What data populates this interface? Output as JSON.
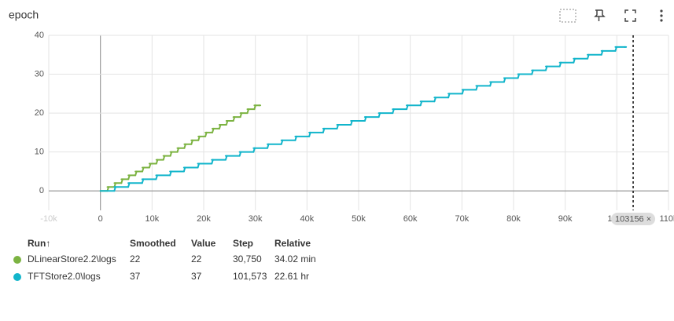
{
  "chart_data": {
    "type": "line",
    "step": true,
    "title": "epoch",
    "xlim": [
      -10000,
      110000
    ],
    "ylim": [
      -5,
      40
    ],
    "xticks": [
      {
        "value": -10000,
        "label": "-10k"
      },
      0,
      {
        "value": 10000,
        "label": "10k"
      },
      {
        "value": 20000,
        "label": "20k"
      },
      {
        "value": 30000,
        "label": "30k"
      },
      {
        "value": 40000,
        "label": "40k"
      },
      {
        "value": 50000,
        "label": "50k"
      },
      {
        "value": 60000,
        "label": "60k"
      },
      {
        "value": 70000,
        "label": "70k"
      },
      {
        "value": 80000,
        "label": "80k"
      },
      {
        "value": 90000,
        "label": "90k"
      },
      {
        "value": 100000,
        "label": "100k"
      },
      {
        "value": 110000,
        "label": "110k"
      }
    ],
    "yticks": [
      0,
      10,
      20,
      30,
      40
    ],
    "grid": true,
    "cursor": {
      "value": 103156,
      "close": "×"
    },
    "series": [
      {
        "name": "DLinearStore2.2\\logs",
        "color": "#7cb342",
        "x": [
          0,
          1355,
          2710,
          4065,
          5420,
          6775,
          8130,
          9485,
          10840,
          12195,
          13550,
          14905,
          16260,
          17615,
          18970,
          20325,
          21680,
          23035,
          24390,
          25745,
          27100,
          28455,
          29810,
          30750
        ],
        "values": [
          0,
          1,
          2,
          3,
          4,
          5,
          6,
          7,
          8,
          9,
          10,
          11,
          12,
          13,
          14,
          15,
          16,
          17,
          18,
          19,
          20,
          21,
          22,
          22
        ]
      },
      {
        "name": "TFTStore2.0\\logs",
        "color": "#12b5cb",
        "x": [
          0,
          2695,
          5390,
          8085,
          10780,
          13475,
          16170,
          18865,
          21560,
          24255,
          26950,
          29645,
          32340,
          35035,
          37730,
          40425,
          43120,
          45815,
          48510,
          51205,
          53900,
          56595,
          59290,
          61985,
          64680,
          67375,
          70070,
          72765,
          75460,
          78155,
          80850,
          83545,
          86240,
          88935,
          91630,
          94325,
          97020,
          99715,
          101573
        ],
        "values": [
          0,
          1,
          2,
          3,
          4,
          5,
          6,
          7,
          8,
          9,
          10,
          11,
          12,
          13,
          14,
          15,
          16,
          17,
          18,
          19,
          20,
          21,
          22,
          23,
          24,
          25,
          26,
          27,
          28,
          29,
          30,
          31,
          32,
          33,
          34,
          35,
          36,
          37,
          37
        ]
      }
    ]
  },
  "legend_table": {
    "columns": [
      "Run↑",
      "Smoothed",
      "Value",
      "Step",
      "Relative"
    ],
    "rows": [
      [
        "DLinearStore2.2\\logs",
        "22",
        "22",
        "30,750",
        "34.02 min"
      ],
      [
        "TFTStore2.0\\logs",
        "37",
        "37",
        "101,573",
        "22.61 hr"
      ]
    ]
  }
}
